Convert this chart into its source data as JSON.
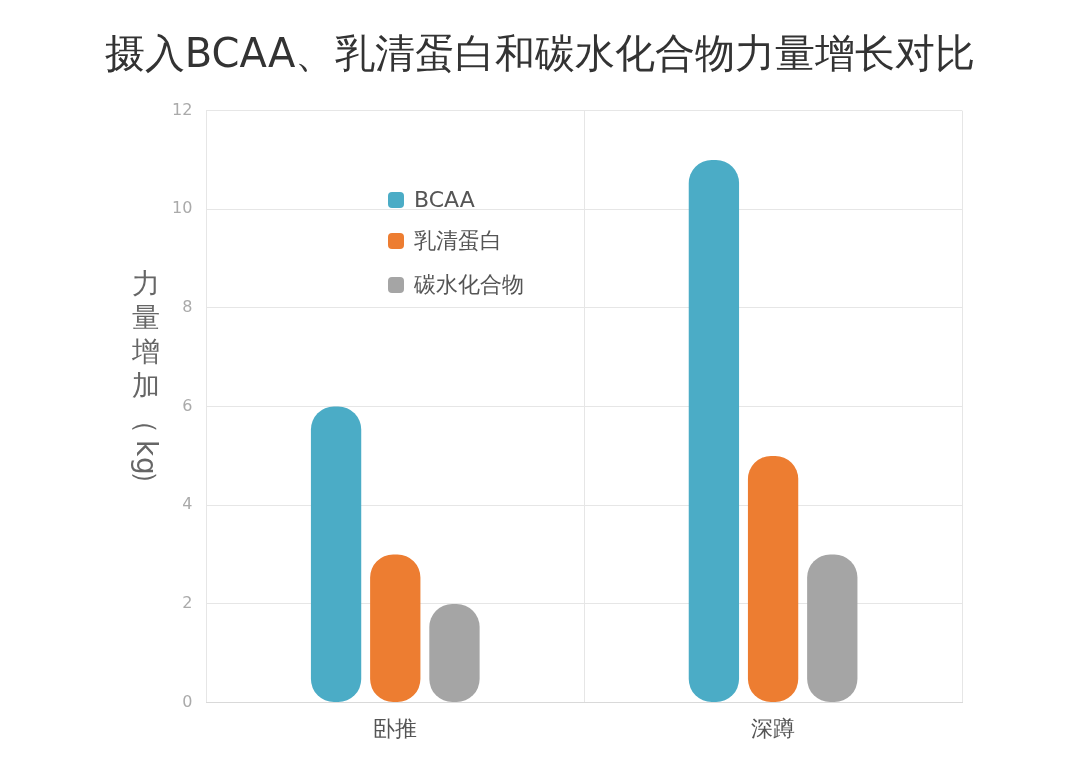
{
  "chart_data": {
    "type": "bar",
    "title": "摄入BCAA、乳清蛋白和碳水化合物力量增长对比",
    "ylabel": "力量增加（kg）",
    "categories": [
      "卧推",
      "深蹲"
    ],
    "series": [
      {
        "name": "BCAA",
        "color": "#4bacc6",
        "values": [
          6,
          11
        ]
      },
      {
        "name": "乳清蛋白",
        "color": "#ed7d31",
        "values": [
          3,
          5
        ]
      },
      {
        "name": "碳水化合物",
        "color": "#a5a5a5",
        "values": [
          2,
          3
        ]
      }
    ],
    "ylim": [
      0,
      12
    ],
    "yticks": [
      0,
      2,
      4,
      6,
      8,
      10,
      12
    ],
    "grid": true,
    "legend": "top left"
  }
}
